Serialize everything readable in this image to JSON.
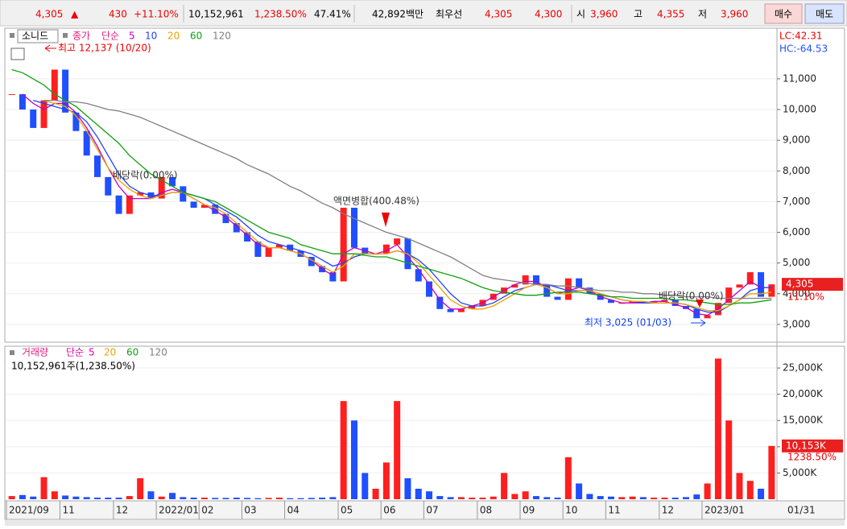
{
  "toolbar": {
    "price": "4,305",
    "arrow": "▲",
    "change": "430",
    "change_pct": "+11.10%",
    "volume": "10,152,961",
    "volume_pct": "1,238.50%",
    "turnover": "47.41%",
    "amount": "42,892백만",
    "best_quote_label": "최우선",
    "ask": "4,305",
    "bid": "4,300",
    "open_label": "시",
    "open": "3,960",
    "high_label": "고",
    "high": "4,355",
    "low_label": "저",
    "low": "3,960",
    "buy": "매수",
    "sell": "매도"
  },
  "chart_data": [
    {
      "type": "candlestick",
      "name": "소니드",
      "price_label": "종가",
      "ma_label": "단순",
      "lc": "LC:42.31",
      "hc": "HC:-64.53",
      "last_price_label": "4,305",
      "last_change_label": "11.10%",
      "annotations": [
        "최고 12,137 (10/20)",
        "배당락(0.00%)",
        "액면병합(400.48%)",
        "배당락(0.00%)",
        "최저 3,025 (01/03)"
      ],
      "ylim": [
        2420,
        12650
      ],
      "yticks": [
        {
          "value": 3000,
          "label": "3,000"
        },
        {
          "value": 4000,
          "label": "4,000"
        },
        {
          "value": 5000,
          "label": "5,000"
        },
        {
          "value": 6000,
          "label": "6,000"
        },
        {
          "value": 7000,
          "label": "7,000"
        },
        {
          "value": 8000,
          "label": "8,000"
        },
        {
          "value": 9000,
          "label": "9,000"
        },
        {
          "value": 10000,
          "label": "10,000"
        },
        {
          "value": 11000,
          "label": "11,000"
        }
      ],
      "values": [
        10500,
        10000,
        9400,
        10300,
        11300,
        9900,
        9300,
        8500,
        7800,
        7200,
        6600,
        7200,
        7300,
        7100,
        7800,
        7500,
        7000,
        6800,
        6900,
        6600,
        6300,
        6000,
        5700,
        5200,
        5500,
        5600,
        5400,
        5200,
        4900,
        4700,
        4400,
        6800,
        5500,
        5300,
        5300,
        5600,
        5800,
        4800,
        4400,
        3900,
        3500,
        3400,
        3500,
        3600,
        3800,
        4000,
        4200,
        4300,
        4600,
        4300,
        3900,
        3800,
        4500,
        4200,
        4000,
        3800,
        3700,
        3700,
        3750,
        3700,
        3750,
        3800,
        3600,
        3500,
        3200,
        3300,
        3700,
        4200,
        4300,
        4700,
        3900,
        4305
      ],
      "up_color": "#ff1f1f",
      "down_color": "#1f4fff",
      "series": [
        {
          "name": "5",
          "color": "#c000c0",
          "values": [
            null,
            10500,
            10200,
            10000,
            10200,
            10200,
            9900,
            9400,
            8800,
            8100,
            7500,
            7100,
            7100,
            7100,
            7300,
            7400,
            7300,
            7100,
            6900,
            6700,
            6500,
            6200,
            5900,
            5600,
            5500,
            5500,
            5400,
            5300,
            5100,
            4800,
            4600,
            5300,
            5500,
            5400,
            5300,
            5400,
            5600,
            5200,
            4800,
            4300,
            3800,
            3500,
            3500,
            3600,
            3700,
            3900,
            4100,
            4300,
            4400,
            4400,
            4200,
            4000,
            4100,
            4200,
            4100,
            3900,
            3800,
            3700,
            3700,
            3700,
            3750,
            3750,
            3650,
            3550,
            3350,
            3300,
            3500,
            3800,
            4100,
            4400,
            4200,
            4200
          ]
        },
        {
          "name": "10",
          "color": "#2040ff",
          "values": [
            null,
            null,
            10300,
            10200,
            10100,
            10000,
            9900,
            9600,
            9100,
            8500,
            7900,
            7500,
            7300,
            7200,
            7200,
            7300,
            7300,
            7200,
            7100,
            6900,
            6700,
            6500,
            6200,
            5900,
            5700,
            5600,
            5500,
            5400,
            5300,
            5100,
            4900,
            5000,
            5200,
            5300,
            5300,
            5300,
            5400,
            5300,
            5100,
            4800,
            4400,
            4000,
            3700,
            3600,
            3600,
            3700,
            3900,
            4100,
            4200,
            4300,
            4300,
            4200,
            4100,
            4100,
            4100,
            4000,
            3900,
            3800,
            3750,
            3700,
            3700,
            3700,
            3700,
            3650,
            3500,
            3400,
            3400,
            3600,
            3800,
            4100,
            4200,
            4200
          ]
        },
        {
          "name": "20",
          "color": "#f0a000",
          "values": [
            null,
            null,
            null,
            10300,
            10200,
            10100,
            9800,
            9300,
            8700,
            8100,
            7700,
            7400,
            7200,
            7100,
            7200,
            7300,
            7300,
            7100,
            6900,
            6800,
            6600,
            6300,
            6000,
            5700,
            5500,
            5500,
            5400,
            5300,
            5100,
            4900,
            4700,
            4900,
            5300,
            5300,
            5300,
            5300,
            5400,
            5300,
            5000,
            4600,
            4200,
            3800,
            3600,
            3500,
            3500,
            3600,
            3800,
            4000,
            4200,
            4300,
            4200,
            4000,
            4000,
            4100,
            4100,
            4000,
            3900,
            3800,
            3750,
            3750,
            3700,
            3700,
            3700,
            3650,
            3550,
            3450,
            3450,
            3600,
            3800,
            4000,
            4000,
            4050
          ]
        },
        {
          "name": "60",
          "color": "#10a010",
          "values": [
            11300,
            11200,
            11000,
            10800,
            10500,
            10300,
            10100,
            9800,
            9500,
            9200,
            8900,
            8500,
            8200,
            7900,
            7700,
            7500,
            7300,
            7200,
            7100,
            7000,
            6800,
            6600,
            6400,
            6200,
            6000,
            5900,
            5800,
            5600,
            5500,
            5400,
            5300,
            5300,
            5300,
            5250,
            5200,
            5200,
            5100,
            5000,
            4900,
            4800,
            4700,
            4600,
            4500,
            4350,
            4200,
            4100,
            4050,
            4000,
            3950,
            3950,
            4000,
            4050,
            4050,
            4050,
            4000,
            3950,
            3900,
            3900,
            3850,
            3850,
            3850,
            3850,
            3800,
            3800,
            3750,
            3700,
            3650,
            3650,
            3700,
            3700,
            3750,
            3800
          ]
        },
        {
          "name": "120",
          "color": "#808080",
          "values": [
            null,
            null,
            null,
            10300,
            10300,
            10250,
            10250,
            10200,
            10100,
            10000,
            9950,
            9850,
            9750,
            9600,
            9450,
            9300,
            9150,
            9000,
            8850,
            8700,
            8550,
            8400,
            8200,
            8050,
            7900,
            7700,
            7500,
            7350,
            7150,
            6950,
            6800,
            6600,
            6450,
            6300,
            6150,
            6000,
            5900,
            5800,
            5650,
            5500,
            5350,
            5200,
            5000,
            4800,
            4600,
            4500,
            4450,
            4400,
            4350,
            4300,
            4300,
            4250,
            4250,
            4200,
            4150,
            4100,
            4100,
            4050,
            4050,
            4000,
            4000,
            3950,
            3950,
            3900,
            3900,
            3900,
            3850,
            3850,
            3850,
            3850,
            3850,
            3850
          ]
        }
      ]
    },
    {
      "type": "bar",
      "name": "거래량",
      "volume_label": "10,152,961주(1,238.50%)",
      "legend": [
        {
          "text": "단순",
          "color": "#e000a0"
        },
        {
          "text": "5",
          "color": "#e000a0"
        },
        {
          "text": "20",
          "color": "#f0a000"
        },
        {
          "text": "60",
          "color": "#10a010"
        },
        {
          "text": "120",
          "color": "#808080"
        }
      ],
      "last_volume_label": "10,153K",
      "last_volume_pct": "1238.50%",
      "cursor_date": "01/31",
      "ylim": [
        0,
        29150
      ],
      "yticks": [
        {
          "value": 5000,
          "label": "5,000K"
        },
        {
          "value": 10000,
          "label": "10,000K"
        },
        {
          "value": 15000,
          "label": "15,000K"
        },
        {
          "value": 20000,
          "label": "20,000K"
        },
        {
          "value": 25000,
          "label": "25,000K"
        }
      ],
      "categories": [
        "2021/09",
        null,
        null,
        null,
        null,
        "11",
        null,
        null,
        null,
        null,
        "12",
        null,
        null,
        null,
        "2022/01",
        null,
        null,
        null,
        "02",
        null,
        null,
        null,
        "03",
        null,
        null,
        null,
        "04",
        null,
        null,
        null,
        null,
        "05",
        null,
        null,
        null,
        "06",
        null,
        null,
        null,
        "07",
        null,
        null,
        null,
        null,
        "08",
        null,
        null,
        null,
        "09",
        null,
        null,
        null,
        "10",
        null,
        null,
        null,
        "11",
        null,
        null,
        null,
        null,
        "12",
        null,
        null,
        null,
        "2023/01",
        null,
        null,
        null,
        null,
        null,
        null
      ],
      "values": [
        600,
        800,
        500,
        4200,
        1500,
        700,
        500,
        400,
        300,
        300,
        300,
        600,
        4000,
        1500,
        500,
        1200,
        400,
        300,
        300,
        250,
        250,
        300,
        250,
        200,
        250,
        300,
        200,
        200,
        250,
        300,
        400,
        18700,
        15000,
        5000,
        2000,
        7000,
        18700,
        4000,
        2000,
        1500,
        600,
        400,
        400,
        300,
        300,
        500,
        5000,
        1000,
        1500,
        600,
        400,
        300,
        8000,
        3000,
        1000,
        600,
        500,
        400,
        500,
        400,
        300,
        300,
        300,
        400,
        900,
        3000,
        26800,
        15000,
        5000,
        3500,
        2000,
        10153
      ]
    }
  ]
}
